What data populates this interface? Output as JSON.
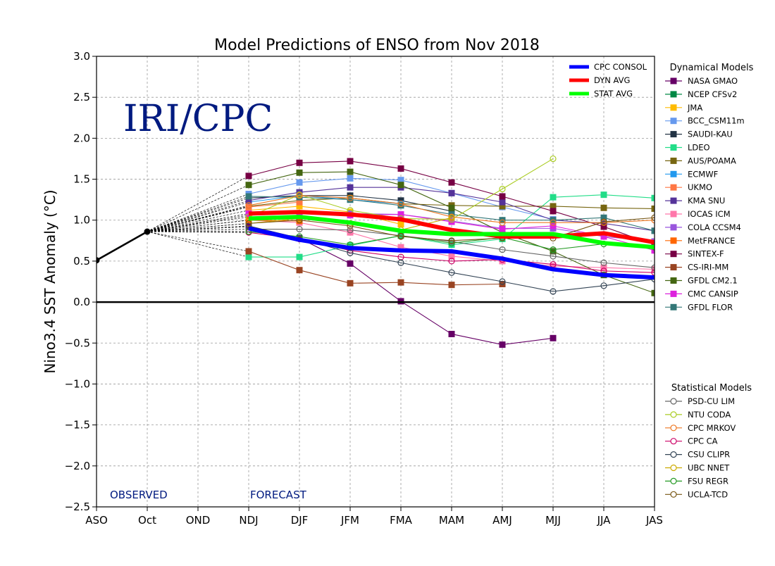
{
  "chart_data": {
    "type": "line",
    "title": "Model Predictions of ENSO from Nov 2018",
    "ylabel": "Nino3.4 SST Anomaly (°C)",
    "xlabel": "",
    "categories": [
      "ASO",
      "Oct",
      "OND",
      "NDJ",
      "DJF",
      "JFM",
      "FMA",
      "MAM",
      "AMJ",
      "MJJ",
      "JJA",
      "JAS"
    ],
    "ylim": [
      -2.5,
      3.0
    ],
    "yticks": [
      "−2.5",
      "−2.0",
      "−1.5",
      "−1.0",
      "−0.5",
      "0.0",
      "0.5",
      "1.0",
      "1.5",
      "2.0",
      "2.5",
      "3.0"
    ],
    "grid": true,
    "watermark": "IRI/CPC",
    "annotations": {
      "observed": "OBSERVED",
      "forecast": "FORECAST"
    },
    "observed": {
      "x": [
        "ASO",
        "Oct"
      ],
      "values": [
        0.51,
        0.86
      ],
      "color": "#000000"
    },
    "forecast_x": [
      "NDJ",
      "DJF",
      "JFM",
      "FMA",
      "MAM",
      "AMJ",
      "MJJ",
      "JJA",
      "JAS"
    ],
    "summary_series": [
      {
        "name": "CPC CONSOL",
        "color": "#0000ff",
        "values": [
          0.9,
          0.76,
          0.66,
          0.63,
          0.62,
          0.53,
          0.4,
          0.33,
          0.3
        ]
      },
      {
        "name": "DYN AVG",
        "color": "#ff0000",
        "values": [
          1.08,
          1.1,
          1.07,
          1.01,
          0.88,
          0.8,
          0.8,
          0.84,
          0.73
        ]
      },
      {
        "name": "STAT AVG",
        "color": "#00ff00",
        "values": [
          1.02,
          1.04,
          0.97,
          0.87,
          0.83,
          0.83,
          0.83,
          0.72,
          0.67
        ]
      }
    ],
    "legend_groups": [
      {
        "title": "Dynamical Models",
        "marker": "square",
        "series": [
          {
            "name": "NASA GMAO",
            "color": "#660066",
            "values": [
              0.92,
              0.78,
              0.47,
              0.01,
              -0.39,
              -0.52,
              -0.44,
              null,
              null
            ]
          },
          {
            "name": "NCEP CFSv2",
            "color": "#008844",
            "values": [
              null,
              null,
              null,
              null,
              null,
              null,
              null,
              null,
              null
            ]
          },
          {
            "name": "JMA",
            "color": "#ffbb00",
            "values": [
              1.12,
              1.17,
              1.1,
              0.95,
              null,
              null,
              null,
              null,
              null
            ]
          },
          {
            "name": "BCC_CSM11m",
            "color": "#6699ee",
            "values": [
              1.32,
              1.46,
              1.51,
              1.49,
              1.33,
              1.16,
              1.01,
              null,
              null
            ]
          },
          {
            "name": "SAUDI-KAU",
            "color": "#223344",
            "values": [
              1.27,
              1.3,
              1.3,
              1.24,
              1.11,
              null,
              null,
              null,
              null
            ]
          },
          {
            "name": "LDEO",
            "color": "#22dd88",
            "values": [
              0.55,
              0.55,
              0.69,
              0.81,
              0.7,
              0.77,
              1.28,
              1.31,
              1.27
            ]
          },
          {
            "name": "AUS/POAMA",
            "color": "#776611",
            "values": [
              1.17,
              1.24,
              1.27,
              1.2,
              1.18,
              1.17,
              1.17,
              1.15,
              1.14
            ]
          },
          {
            "name": "ECMWF",
            "color": "#2299ee",
            "values": [
              1.22,
              1.3,
              1.25,
              1.2,
              null,
              null,
              null,
              null,
              null
            ]
          },
          {
            "name": "UKMO",
            "color": "#ff7744",
            "values": [
              1.16,
              1.22,
              null,
              null,
              null,
              null,
              null,
              null,
              null
            ]
          },
          {
            "name": "KMA SNU",
            "color": "#553399",
            "values": [
              1.24,
              1.34,
              1.4,
              1.4,
              1.33,
              1.22,
              1.0,
              0.96,
              0.87
            ]
          },
          {
            "name": "IOCAS ICM",
            "color": "#ff77aa",
            "values": [
              1.0,
              0.97,
              0.85,
              0.67,
              0.56,
              0.5,
              0.44,
              0.42,
              0.4
            ]
          },
          {
            "name": "COLA CCSM4",
            "color": "#9955dd",
            "values": [
              1.06,
              1.08,
              1.08,
              1.07,
              0.99,
              0.9,
              0.9,
              0.8,
              0.74
            ]
          },
          {
            "name": "MetFRANCE",
            "color": "#ff6600",
            "values": [
              1.0,
              0.99,
              null,
              null,
              null,
              null,
              null,
              null,
              null
            ]
          },
          {
            "name": "SINTEX-F",
            "color": "#770044",
            "values": [
              1.54,
              1.7,
              1.72,
              1.63,
              1.46,
              1.29,
              1.11,
              0.92,
              0.7
            ]
          },
          {
            "name": "CS-IRI-MM",
            "color": "#994422",
            "values": [
              0.62,
              0.39,
              0.23,
              0.24,
              0.21,
              0.22,
              null,
              null,
              null
            ]
          },
          {
            "name": "GFDL CM2.1",
            "color": "#446611",
            "values": [
              1.43,
              1.58,
              1.59,
              1.43,
              1.15,
              0.85,
              0.62,
              0.33,
              0.11
            ]
          },
          {
            "name": "CMC CANSIP",
            "color": "#dd22dd",
            "values": [
              1.08,
              1.08,
              1.06,
              1.07,
              0.98,
              0.89,
              0.93,
              0.8,
              0.63
            ]
          },
          {
            "name": "GFDL FLOR",
            "color": "#337777",
            "values": [
              1.29,
              1.28,
              1.25,
              1.18,
              1.07,
              1.0,
              1.0,
              1.03,
              0.87
            ]
          }
        ]
      },
      {
        "title": "Statistical Models",
        "marker": "circle",
        "series": [
          {
            "name": "PSD-CU LIM",
            "color": "#666666",
            "values": [
              0.89,
              0.89,
              0.88,
              0.81,
              0.74,
              0.64,
              0.56,
              0.48,
              0.42
            ]
          },
          {
            "name": "NTU CODA",
            "color": "#aacc22",
            "values": [
              1.04,
              1.31,
              1.12,
              1.02,
              1.01,
              1.38,
              1.75,
              null,
              null
            ]
          },
          {
            "name": "CPC MRKOV",
            "color": "#ee7722",
            "values": [
              1.18,
              1.3,
              1.27,
              1.2,
              1.04,
              0.97,
              0.97,
              0.97,
              1.0
            ]
          },
          {
            "name": "CPC CA",
            "color": "#cc0066",
            "values": [
              0.85,
              0.77,
              0.63,
              0.55,
              0.5,
              0.52,
              0.46,
              0.38,
              0.36
            ]
          },
          {
            "name": "CSU CLIPR",
            "color": "#334455",
            "values": [
              0.93,
              0.78,
              0.6,
              0.48,
              0.36,
              0.25,
              0.13,
              0.2,
              0.28
            ]
          },
          {
            "name": "UBC NNET",
            "color": "#ccaa00",
            "values": [
              0.96,
              1.02,
              0.96,
              0.88,
              1.03,
              null,
              null,
              null,
              null
            ]
          },
          {
            "name": "FSU REGR",
            "color": "#229922",
            "values": [
              0.86,
              0.8,
              0.7,
              0.81,
              0.72,
              0.79,
              0.64,
              0.71,
              0.67
            ]
          },
          {
            "name": "UCLA-TCD",
            "color": "#775511",
            "values": [
              0.96,
              1.0,
              0.93,
              0.8,
              0.75,
              0.78,
              0.78,
              0.98,
              1.03
            ]
          }
        ]
      }
    ]
  }
}
